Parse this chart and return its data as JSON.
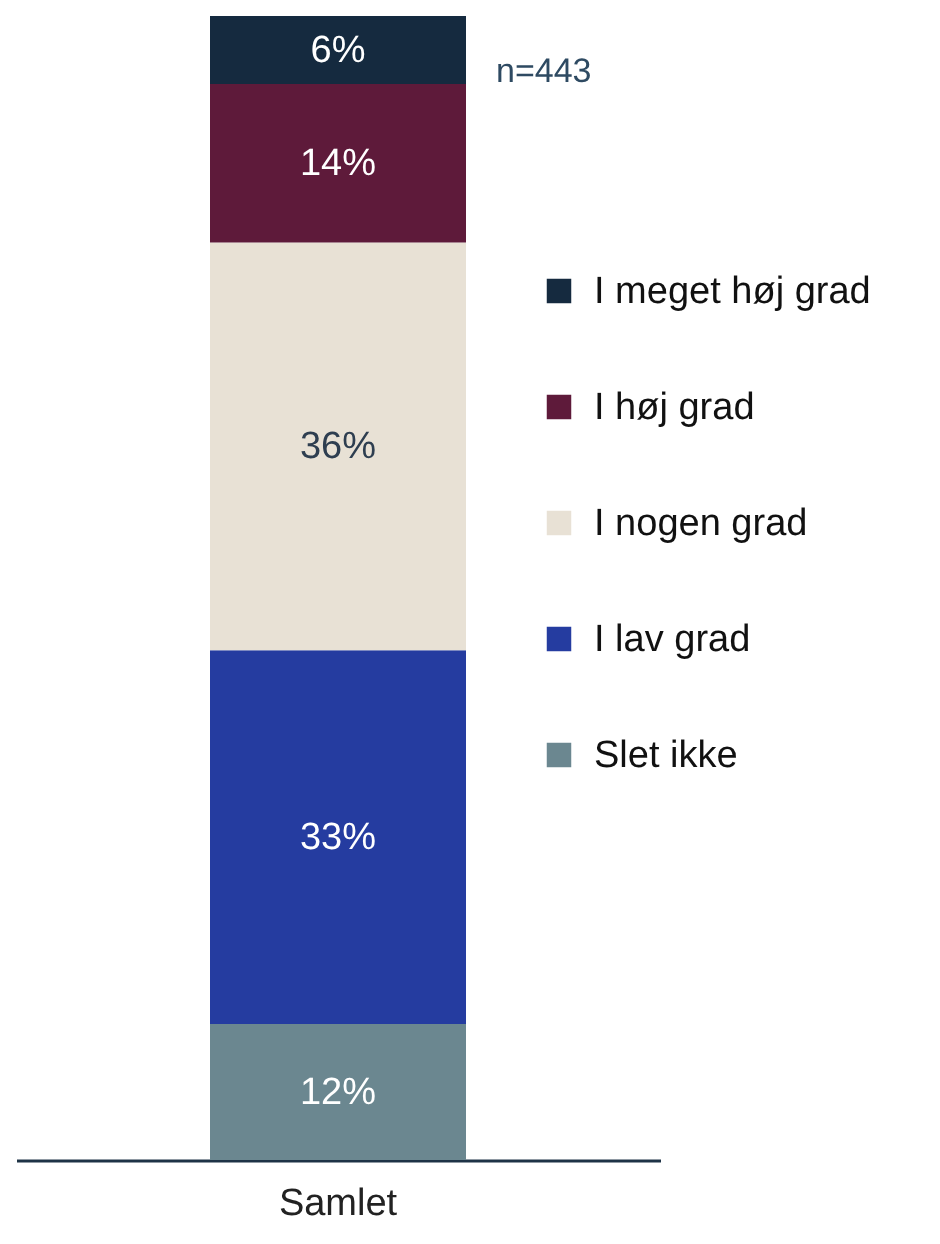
{
  "chart_data": {
    "type": "bar",
    "stacked": true,
    "categories": [
      "Samlet"
    ],
    "legend": "right",
    "annotations": [
      "n=443"
    ],
    "series": [
      {
        "name": "Slet ikke",
        "color": "#6b8790",
        "values": [
          12
        ],
        "value_labels": [
          "12%"
        ]
      },
      {
        "name": "I lav grad",
        "color": "#253ca0",
        "values": [
          33
        ],
        "value_labels": [
          "33%"
        ]
      },
      {
        "name": "I nogen grad",
        "color": "#e8e1d5",
        "values": [
          36
        ],
        "value_labels": [
          "36%"
        ]
      },
      {
        "name": "I høj grad",
        "color": "#5e1a3a",
        "values": [
          14
        ],
        "value_labels": [
          "14%"
        ]
      },
      {
        "name": "I meget høj grad",
        "color": "#152a3f",
        "values": [
          6
        ],
        "value_labels": [
          "6%"
        ]
      }
    ]
  }
}
